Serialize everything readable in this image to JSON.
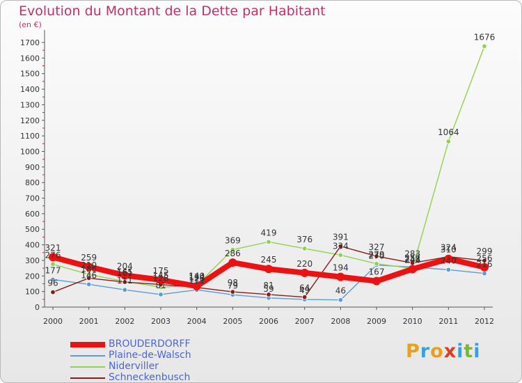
{
  "header": {
    "title": "Evolution du Montant de la Dette par Habitant",
    "unit": "(en €)"
  },
  "logo": {
    "letters": [
      "P",
      "r",
      "o",
      "x",
      "i",
      "t",
      "i"
    ],
    "colors": [
      "#e8a020",
      "#3aa0dd",
      "#e8a020",
      "#e03a20",
      "#3aa0dd",
      "#7ab830",
      "#3aa0dd"
    ]
  },
  "chart_data": {
    "type": "line",
    "title": "Evolution du Montant de la Dette par Habitant",
    "ylabel": "(en €)",
    "xlabel": "",
    "x": [
      "2000",
      "2001",
      "2002",
      "2003",
      "2004",
      "2005",
      "2006",
      "2007",
      "2008",
      "2009",
      "2010",
      "2011",
      "2012"
    ],
    "ylim": [
      0,
      1700
    ],
    "yticks": [
      0,
      100,
      200,
      300,
      400,
      500,
      600,
      700,
      800,
      900,
      1000,
      1100,
      1200,
      1300,
      1400,
      1500,
      1600,
      1700
    ],
    "grid": false,
    "legend": "bottom-left",
    "series": [
      {
        "name": "BROUDERDORFF",
        "color": "#ee1111",
        "values": [
          321,
          259,
          204,
          175,
          134,
          286,
          245,
          220,
          194,
          167,
          244,
          310,
          256
        ]
      },
      {
        "name": "Plaine-de-Walsch",
        "color": "#5b9bd5",
        "values": [
          177,
          146,
          111,
          81,
          111,
          79,
          59,
          49,
          46,
          270,
          257,
          240,
          216
        ]
      },
      {
        "name": "Niderviller",
        "color": "#92d050",
        "values": [
          276,
          210,
          165,
          128,
          140,
          369,
          419,
          376,
          334,
          279,
          248,
          1064,
          1676
        ]
      },
      {
        "name": "Schneckenbusch",
        "color": "#8b1a1a",
        "values": [
          96,
          186,
          161,
          145,
          126,
          98,
          81,
          64,
          391,
          327,
          283,
          324,
          299
        ]
      }
    ]
  }
}
